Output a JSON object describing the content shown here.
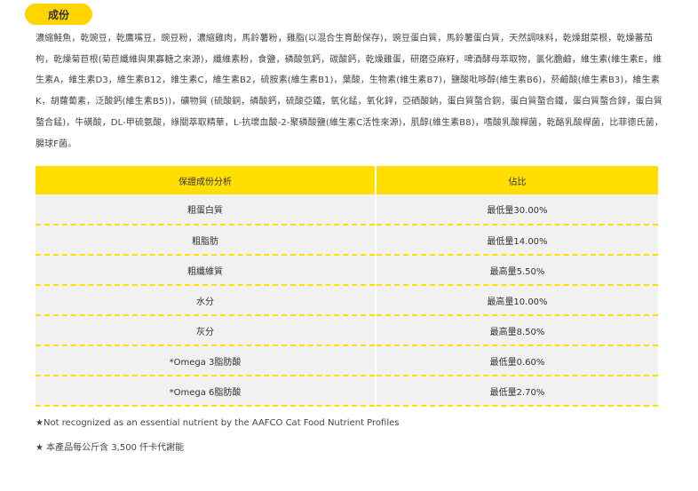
{
  "section_title": "成份",
  "ingredients_text": "濃縮鮭魚，乾豌豆，乾鷹嘴豆，豌豆粉，濃縮雞肉，馬鈴薯粉，雞脂(以混合生育酚保存)，豌豆蛋白質，馬鈴薯蛋白質，天然調味料，乾燥甜菜根，乾燥蕃茄枸，乾燥菊苣根(菊苣纖維與果寡糖之來源)，纖維素粉，食鹽，磷酸氫鈣，碳酸鈣，乾燥雞蛋，研磨亞麻籽，啤酒酵母萃取物，氯化膽鹼，維生素(維生素E，維生素A，維生素D3，維生素B12，維生素C，維生素B2，硫胺素(維生素B1)，葉酸，生物素(維生素B7)，鹽酸吡哆醇(維生素B6)，菸鹼酸(維生素B3)，維生素K，胡蘿蔔素，泛酸鈣(維生素B5))，礦物質 (硫酸銅，磷酸鈣，硫酸亞鐵，氧化錳，氧化鋅，亞硒酸鈉，蛋白質螯合銅，蛋白質螯合鐵，蛋白質螯合鋅，蛋白質螯合錳)，牛磺酸，DL-甲硫氨酸，綠關萃取精華，L-抗壞血酸-2-聚磷酸鹽(維生素C活性來源)，肌醇(維生素B8)，嗜酸乳酸桿菌，乾酪乳酸桿菌，比菲德氏菌，腸球F菌。",
  "table": {
    "headers": [
      "保證成份分析",
      "佔比"
    ],
    "rows": [
      {
        "name": "粗蛋白質",
        "value": "最低量30.00%"
      },
      {
        "name": "粗脂肪",
        "value": "最低量14.00%"
      },
      {
        "name": "粗纖維質",
        "value": "最高量5.50%"
      },
      {
        "name": "水分",
        "value": "最高量10.00%"
      },
      {
        "name": "灰分",
        "value": "最高量8.50%"
      },
      {
        "name": "*Omega 3脂肪酸",
        "value": "最低量0.60%"
      },
      {
        "name": "*Omega 6脂肪酸",
        "value": "最低量2.70%"
      }
    ]
  },
  "footnotes": [
    "★Not recognized as an essential nutrient by the AAFCO Cat Food Nutrient Profiles",
    "★ 本產品每公斤含 3,500 仟卡代謝能"
  ],
  "colors": {
    "accent": "#ffde00",
    "row_bg": "#f1f1f1"
  }
}
